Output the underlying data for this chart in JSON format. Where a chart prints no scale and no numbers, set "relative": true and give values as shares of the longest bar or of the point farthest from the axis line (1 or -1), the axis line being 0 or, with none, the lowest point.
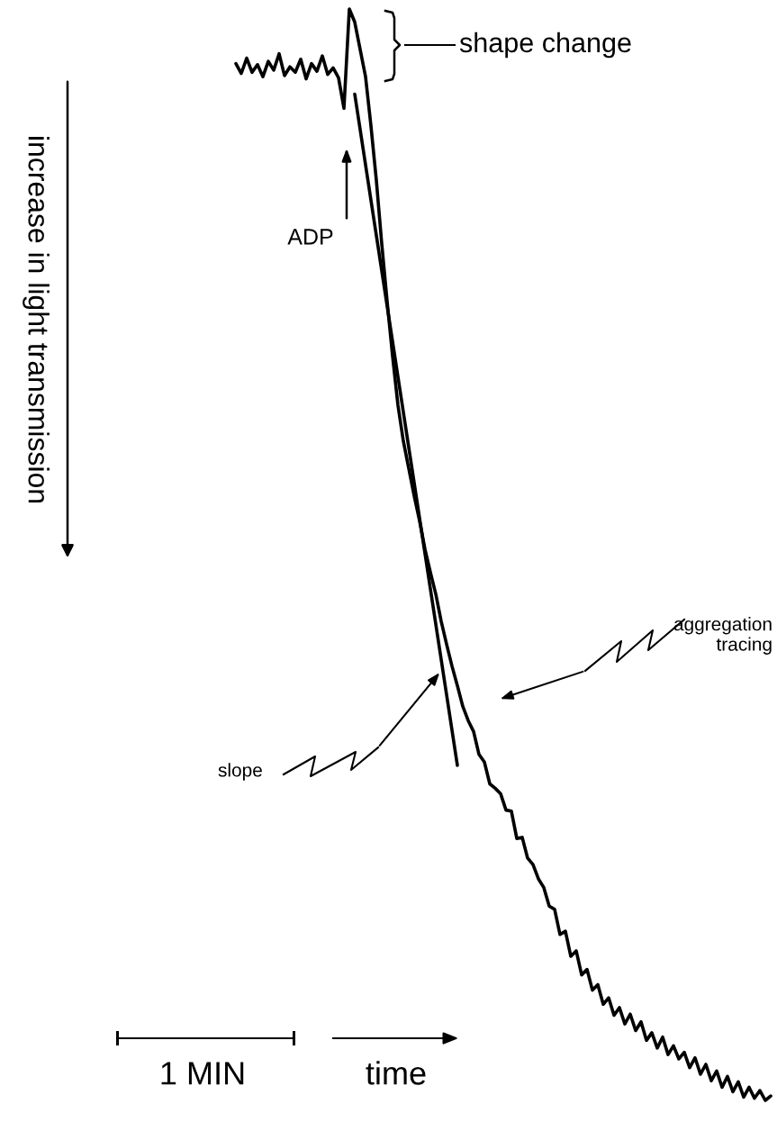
{
  "chart_data": {
    "type": "line",
    "relative": true,
    "categories": [
      null,
      null,
      null,
      null,
      null,
      null,
      null,
      null,
      null,
      null,
      null,
      null,
      null,
      null,
      null,
      null,
      null,
      null,
      null,
      null,
      null,
      null,
      null,
      null,
      null,
      null,
      null,
      null,
      null,
      null,
      null,
      null,
      null,
      null,
      null,
      null,
      null,
      null,
      null,
      null,
      null,
      null,
      null,
      null,
      null,
      null,
      null,
      null,
      null,
      null,
      null,
      null,
      null,
      null,
      null,
      null,
      null,
      null,
      null,
      null,
      null,
      null,
      null,
      null,
      null,
      null,
      null,
      null,
      null,
      null,
      null,
      null,
      null,
      null,
      null,
      null,
      null,
      null,
      null,
      null,
      null,
      null,
      null,
      null,
      null,
      null,
      null,
      null,
      null,
      null,
      null,
      null,
      null,
      null,
      null,
      null,
      null,
      null,
      null,
      null
    ],
    "series": [
      {
        "color": "#000000",
        "values": [
          0.95,
          0.941,
          0.955,
          0.942,
          0.949,
          0.938,
          0.952,
          0.944,
          0.959,
          0.939,
          0.947,
          0.942,
          0.954,
          0.936,
          0.95,
          0.943,
          0.957,
          0.94,
          0.946,
          0.937,
          0.909,
          1.0,
          0.988,
          0.963,
          0.938,
          0.893,
          0.843,
          0.785,
          0.732,
          0.682,
          0.637,
          0.604,
          0.579,
          0.554,
          0.531,
          0.505,
          0.484,
          0.464,
          0.439,
          0.418,
          0.398,
          0.38,
          0.361,
          0.348,
          0.338,
          0.317,
          0.31,
          0.29,
          0.286,
          0.281,
          0.266,
          0.265,
          0.24,
          0.241,
          0.222,
          0.216,
          0.203,
          0.195,
          0.178,
          0.175,
          0.152,
          0.155,
          0.132,
          0.137,
          0.115,
          0.12,
          0.101,
          0.106,
          0.088,
          0.094,
          0.078,
          0.085,
          0.07,
          0.079,
          0.064,
          0.072,
          0.055,
          0.062,
          0.048,
          0.058,
          0.042,
          0.05,
          0.038,
          0.044,
          0.03,
          0.039,
          0.024,
          0.033,
          0.018,
          0.027,
          0.012,
          0.022,
          0.008,
          0.017,
          0.003,
          0.012,
          0.002,
          0.009,
          0.0,
          0.004
        ]
      },
      {
        "color": "#000000",
        "values": [
          null,
          null,
          null,
          null,
          null,
          null,
          null,
          null,
          null,
          null,
          null,
          null,
          null,
          null,
          null,
          null,
          null,
          null,
          null,
          null,
          null,
          null,
          0.922,
          null,
          null,
          null,
          null,
          null,
          null,
          null,
          null,
          null,
          null,
          null,
          null,
          null,
          null,
          null,
          null,
          null,
          null,
          0.307,
          null,
          null,
          null,
          null,
          null,
          null,
          null,
          null,
          null,
          null,
          null,
          null,
          null,
          null,
          null,
          null,
          null,
          null,
          null,
          null,
          null,
          null,
          null,
          null,
          null,
          null,
          null,
          null,
          null,
          null,
          null,
          null,
          null,
          null,
          null,
          null,
          null,
          null,
          null,
          null,
          null,
          null,
          null,
          null,
          null,
          null,
          null,
          null,
          null,
          null,
          null,
          null,
          null,
          null,
          null,
          null,
          null,
          null
        ]
      }
    ],
    "annotations": [
      "shape change",
      "ADP",
      "aggregation\ntracing",
      "slope",
      "1 MIN",
      "time",
      "increase in light transmission"
    ]
  }
}
